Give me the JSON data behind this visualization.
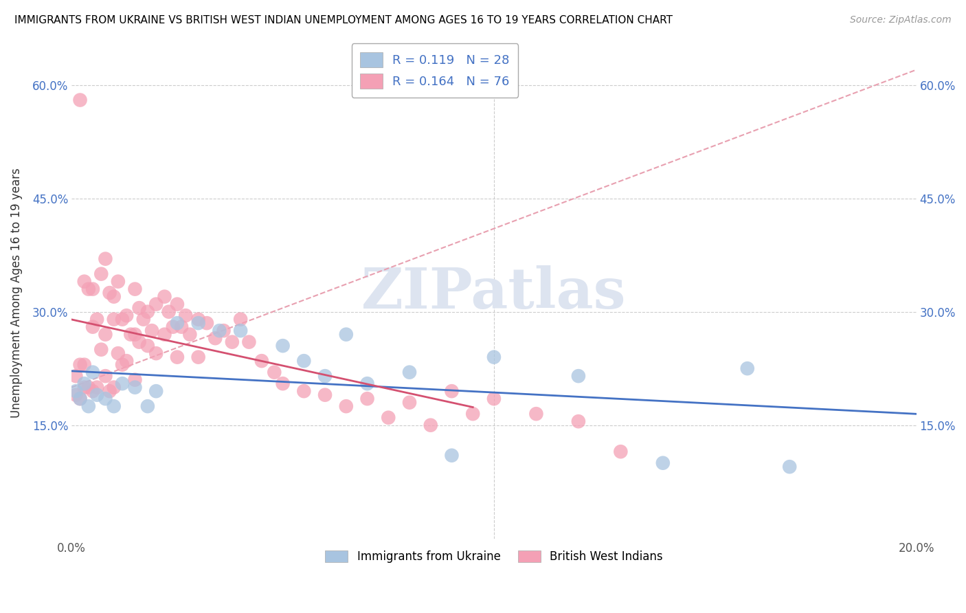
{
  "title": "IMMIGRANTS FROM UKRAINE VS BRITISH WEST INDIAN UNEMPLOYMENT AMONG AGES 16 TO 19 YEARS CORRELATION CHART",
  "source": "Source: ZipAtlas.com",
  "ylabel": "Unemployment Among Ages 16 to 19 years",
  "xlim": [
    0.0,
    0.2
  ],
  "ylim": [
    0.0,
    0.65
  ],
  "xtick_positions": [
    0.0,
    0.05,
    0.1,
    0.15,
    0.2
  ],
  "xticklabels": [
    "0.0%",
    "",
    "",
    "",
    "20.0%"
  ],
  "ytick_positions": [
    0.0,
    0.15,
    0.3,
    0.45,
    0.6
  ],
  "yticklabels": [
    "",
    "15.0%",
    "30.0%",
    "45.0%",
    "60.0%"
  ],
  "ukraine_R": "0.119",
  "ukraine_N": "28",
  "bwi_R": "0.164",
  "bwi_N": "76",
  "ukraine_color": "#a8c4e0",
  "bwi_color": "#f4a0b5",
  "ukraine_line_color": "#4472c4",
  "bwi_line_color": "#d45070",
  "dash_line_color": "#e8a0b0",
  "watermark": "ZIPatlas",
  "ukraine_scatter_x": [
    0.001,
    0.002,
    0.003,
    0.004,
    0.005,
    0.006,
    0.008,
    0.01,
    0.012,
    0.015,
    0.018,
    0.02,
    0.025,
    0.03,
    0.035,
    0.04,
    0.05,
    0.055,
    0.06,
    0.065,
    0.07,
    0.08,
    0.09,
    0.1,
    0.12,
    0.14,
    0.16,
    0.17
  ],
  "ukraine_scatter_y": [
    0.195,
    0.185,
    0.205,
    0.175,
    0.22,
    0.19,
    0.185,
    0.175,
    0.205,
    0.2,
    0.175,
    0.195,
    0.285,
    0.285,
    0.275,
    0.275,
    0.255,
    0.235,
    0.215,
    0.27,
    0.205,
    0.22,
    0.11,
    0.24,
    0.215,
    0.1,
    0.225,
    0.095
  ],
  "bwi_scatter_x": [
    0.001,
    0.001,
    0.002,
    0.002,
    0.002,
    0.003,
    0.003,
    0.003,
    0.004,
    0.004,
    0.005,
    0.005,
    0.005,
    0.006,
    0.006,
    0.007,
    0.007,
    0.008,
    0.008,
    0.008,
    0.009,
    0.009,
    0.01,
    0.01,
    0.01,
    0.011,
    0.011,
    0.012,
    0.012,
    0.013,
    0.013,
    0.014,
    0.015,
    0.015,
    0.015,
    0.016,
    0.016,
    0.017,
    0.018,
    0.018,
    0.019,
    0.02,
    0.02,
    0.022,
    0.022,
    0.023,
    0.024,
    0.025,
    0.025,
    0.026,
    0.027,
    0.028,
    0.03,
    0.03,
    0.032,
    0.034,
    0.036,
    0.038,
    0.04,
    0.042,
    0.045,
    0.048,
    0.05,
    0.055,
    0.06,
    0.065,
    0.07,
    0.075,
    0.08,
    0.085,
    0.09,
    0.095,
    0.1,
    0.11,
    0.12,
    0.13
  ],
  "bwi_scatter_y": [
    0.215,
    0.19,
    0.58,
    0.23,
    0.185,
    0.34,
    0.23,
    0.2,
    0.33,
    0.2,
    0.28,
    0.33,
    0.195,
    0.29,
    0.2,
    0.35,
    0.25,
    0.37,
    0.27,
    0.215,
    0.325,
    0.195,
    0.32,
    0.29,
    0.2,
    0.34,
    0.245,
    0.29,
    0.23,
    0.295,
    0.235,
    0.27,
    0.33,
    0.27,
    0.21,
    0.305,
    0.26,
    0.29,
    0.3,
    0.255,
    0.275,
    0.31,
    0.245,
    0.32,
    0.27,
    0.3,
    0.28,
    0.31,
    0.24,
    0.28,
    0.295,
    0.27,
    0.29,
    0.24,
    0.285,
    0.265,
    0.275,
    0.26,
    0.29,
    0.26,
    0.235,
    0.22,
    0.205,
    0.195,
    0.19,
    0.175,
    0.185,
    0.16,
    0.18,
    0.15,
    0.195,
    0.165,
    0.185,
    0.165,
    0.155,
    0.115
  ]
}
